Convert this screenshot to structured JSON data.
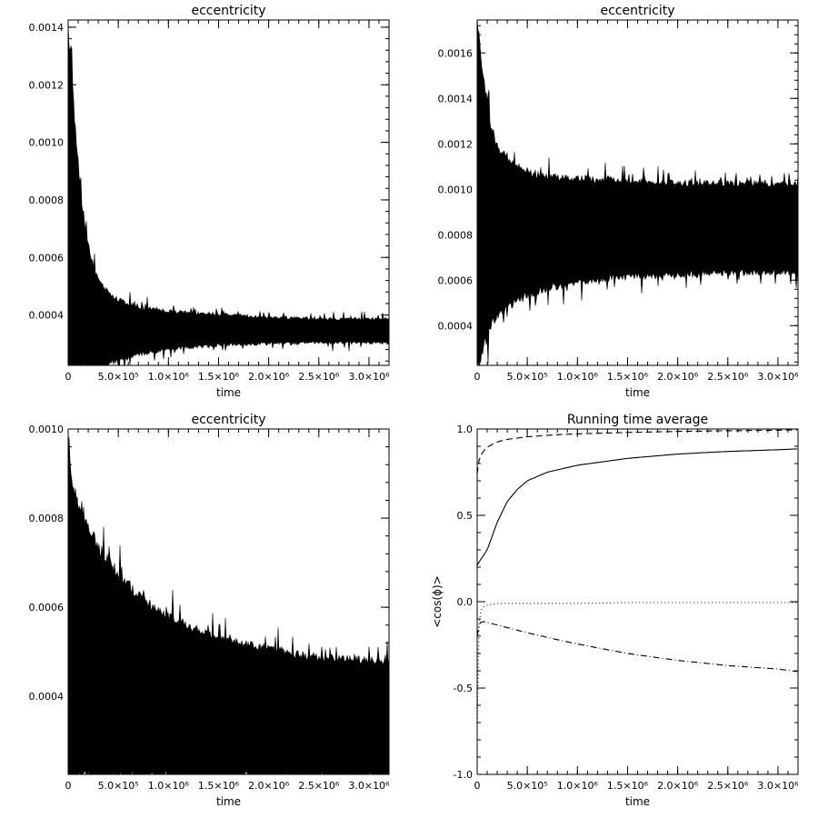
{
  "chart_data": [
    {
      "type": "area",
      "title": "eccentricity",
      "xlabel": "time",
      "ylabel": "",
      "xlim": [
        0,
        3200000
      ],
      "ylim": [
        0.000225,
        0.001425
      ],
      "grid": false,
      "x_ticks": [
        {
          "value": 0,
          "label": "0"
        },
        {
          "value": 500000,
          "label": "5.0×10⁵"
        },
        {
          "value": 1000000,
          "label": "1.0×10⁶"
        },
        {
          "value": 1500000,
          "label": "1.5×10⁶"
        },
        {
          "value": 2000000,
          "label": "2.0×10⁶"
        },
        {
          "value": 2500000,
          "label": "2.5×10⁶"
        },
        {
          "value": 3000000,
          "label": "3.0×10⁶"
        }
      ],
      "y_ticks": [
        {
          "value": 0.0004,
          "label": "0.0004"
        },
        {
          "value": 0.0006,
          "label": "0.0006"
        },
        {
          "value": 0.0008,
          "label": "0.0008"
        },
        {
          "value": 0.001,
          "label": "0.0010"
        },
        {
          "value": 0.0012,
          "label": "0.0012"
        },
        {
          "value": 0.0014,
          "label": "0.0014"
        }
      ],
      "band": {
        "x": [
          0,
          25000,
          50000,
          100000,
          150000,
          200000,
          300000,
          400000,
          500000,
          700000,
          1000000,
          1500000,
          2000000,
          2500000,
          3000000,
          3200000
        ],
        "upper": [
          0.00138,
          0.00126,
          0.00114,
          0.00092,
          0.00074,
          0.00062,
          0.000515,
          0.000475,
          0.00045,
          0.000425,
          0.00041,
          0.0004,
          0.00039,
          0.000385,
          0.000385,
          0.000385
        ],
        "lower": [
          0.000225,
          0.000225,
          0.000225,
          0.000225,
          0.000225,
          0.000225,
          0.000225,
          0.000235,
          0.000245,
          0.000265,
          0.000285,
          0.000298,
          0.000304,
          0.000306,
          0.000306,
          0.000306
        ]
      }
    },
    {
      "type": "area",
      "title": "eccentricity",
      "xlabel": "time",
      "ylabel": "",
      "xlim": [
        0,
        3200000
      ],
      "ylim": [
        0.000225,
        0.001745
      ],
      "grid": false,
      "x_ticks": [
        {
          "value": 0,
          "label": "0"
        },
        {
          "value": 500000,
          "label": "5.0×10⁵"
        },
        {
          "value": 1000000,
          "label": "1.0×10⁶"
        },
        {
          "value": 1500000,
          "label": "1.5×10⁶"
        },
        {
          "value": 2000000,
          "label": "2.0×10⁶"
        },
        {
          "value": 2500000,
          "label": "2.5×10⁶"
        },
        {
          "value": 3000000,
          "label": "3.0×10⁶"
        }
      ],
      "y_ticks": [
        {
          "value": 0.0004,
          "label": "0.0004"
        },
        {
          "value": 0.0006,
          "label": "0.0006"
        },
        {
          "value": 0.0008,
          "label": "0.0008"
        },
        {
          "value": 0.001,
          "label": "0.0010"
        },
        {
          "value": 0.0012,
          "label": "0.0012"
        },
        {
          "value": 0.0014,
          "label": "0.0014"
        },
        {
          "value": 0.0016,
          "label": "0.0016"
        }
      ],
      "band": {
        "x": [
          0,
          25000,
          50000,
          100000,
          150000,
          200000,
          300000,
          400000,
          500000,
          700000,
          1000000,
          1500000,
          2000000,
          2500000,
          3000000,
          3200000
        ],
        "upper": [
          0.0017,
          0.00163,
          0.00152,
          0.00136,
          0.00125,
          0.00118,
          0.00112,
          0.00109,
          0.00107,
          0.00105,
          0.00104,
          0.00103,
          0.00102,
          0.00102,
          0.00102,
          0.00102
        ],
        "lower": [
          0.00024,
          0.00025,
          0.0003,
          0.00037,
          0.00042,
          0.00045,
          0.00049,
          0.00052,
          0.00054,
          0.00057,
          0.0006,
          0.00062,
          0.00063,
          0.00064,
          0.00064,
          0.00064
        ]
      }
    },
    {
      "type": "area",
      "title": "eccentricity",
      "xlabel": "time",
      "ylabel": "",
      "xlim": [
        0,
        3200000
      ],
      "ylim": [
        0.000225,
        0.001
      ],
      "grid": false,
      "x_ticks": [
        {
          "value": 0,
          "label": "0"
        },
        {
          "value": 500000,
          "label": "5.0×10⁵"
        },
        {
          "value": 1000000,
          "label": "1.0×10⁶"
        },
        {
          "value": 1500000,
          "label": "1.5×10⁶"
        },
        {
          "value": 2000000,
          "label": "2.0×10⁶"
        },
        {
          "value": 2500000,
          "label": "2.5×10⁶"
        },
        {
          "value": 3000000,
          "label": "3.0×10⁶"
        }
      ],
      "y_ticks": [
        {
          "value": 0.0004,
          "label": "0.0004"
        },
        {
          "value": 0.0006,
          "label": "0.0006"
        },
        {
          "value": 0.0008,
          "label": "0.0008"
        },
        {
          "value": 0.001,
          "label": "0.0010"
        }
      ],
      "band": {
        "x": [
          0,
          25000,
          50000,
          100000,
          200000,
          300000,
          500000,
          700000,
          1000000,
          1300000,
          1600000,
          2000000,
          2400000,
          2800000,
          3200000
        ],
        "upper": [
          0.00093,
          0.00091,
          0.00086,
          0.00082,
          0.00077,
          0.00073,
          0.00067,
          0.00062,
          0.000575,
          0.000545,
          0.00052,
          0.000505,
          0.000485,
          0.00048,
          0.000475
        ],
        "lower": [
          0.000225,
          0.000225,
          0.000225,
          0.000225,
          0.000225,
          0.000225,
          0.000225,
          0.000225,
          0.000225,
          0.000225,
          0.000225,
          0.000225,
          0.000225,
          0.000225,
          0.000225
        ]
      }
    },
    {
      "type": "line",
      "title": "Running time average",
      "xlabel": "time",
      "ylabel": "<cos(ϕ)>",
      "xlim": [
        0,
        3200000
      ],
      "ylim": [
        -1.0,
        1.0
      ],
      "grid": false,
      "x_ticks": [
        {
          "value": 0,
          "label": "0"
        },
        {
          "value": 500000,
          "label": "5.0×10⁵"
        },
        {
          "value": 1000000,
          "label": "1.0×10⁶"
        },
        {
          "value": 1500000,
          "label": "1.5×10⁶"
        },
        {
          "value": 2000000,
          "label": "2.0×10⁶"
        },
        {
          "value": 2500000,
          "label": "2.5×10⁶"
        },
        {
          "value": 3000000,
          "label": "3.0×10⁶"
        }
      ],
      "y_ticks": [
        {
          "value": -1.0,
          "label": "-1.0"
        },
        {
          "value": -0.5,
          "label": "-0.5"
        },
        {
          "value": 0.0,
          "label": "0.0"
        },
        {
          "value": 0.5,
          "label": "0.5"
        },
        {
          "value": 1.0,
          "label": "1.0"
        }
      ],
      "series": [
        {
          "style": "dashed",
          "x": [
            0,
            10000,
            30000,
            60000,
            100000,
            200000,
            300000,
            500000,
            800000,
            1000000,
            1500000,
            2000000,
            2500000,
            3000000,
            3200000
          ],
          "y": [
            0.74,
            0.8,
            0.84,
            0.87,
            0.895,
            0.925,
            0.94,
            0.955,
            0.967,
            0.972,
            0.98,
            0.986,
            0.99,
            0.993,
            0.995
          ]
        },
        {
          "style": "solid",
          "x": [
            0,
            30000,
            100000,
            150000,
            200000,
            300000,
            400000,
            500000,
            700000,
            1000000,
            1500000,
            2000000,
            2500000,
            3000000,
            3200000
          ],
          "y": [
            0.21,
            0.24,
            0.3,
            0.38,
            0.46,
            0.58,
            0.65,
            0.7,
            0.75,
            0.79,
            0.83,
            0.855,
            0.87,
            0.88,
            0.885
          ]
        },
        {
          "style": "dotted",
          "x": [
            0,
            5000,
            15000,
            30000,
            60000,
            100000,
            200000,
            300000,
            500000,
            1000000,
            1500000,
            2000000,
            2500000,
            3000000,
            3200000
          ],
          "y": [
            -0.72,
            -0.35,
            -0.15,
            -0.06,
            -0.03,
            -0.02,
            -0.01,
            -0.01,
            -0.01,
            -0.01,
            -0.005,
            -0.005,
            -0.005,
            -0.005,
            -0.005
          ]
        },
        {
          "style": "dash-dot",
          "x": [
            0,
            10000,
            30000,
            60000,
            100000,
            200000,
            300000,
            500000,
            800000,
            1000000,
            1500000,
            2000000,
            2500000,
            3000000,
            3200000
          ],
          "y": [
            -0.2,
            -0.15,
            -0.12,
            -0.115,
            -0.12,
            -0.135,
            -0.15,
            -0.18,
            -0.22,
            -0.245,
            -0.3,
            -0.34,
            -0.37,
            -0.39,
            -0.405
          ]
        }
      ]
    }
  ]
}
